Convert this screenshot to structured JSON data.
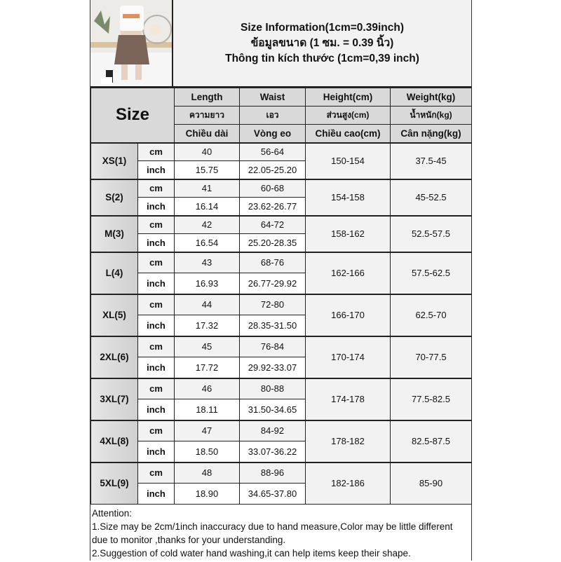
{
  "title": {
    "line1": "Size Information(1cm=0.39inch)",
    "line2": "ข้อมูลขนาด (1 ซม. = 0.39 นิ้ว)",
    "line3": "Thông tin kích thước (1cm=0,39 inch)"
  },
  "header": {
    "size_label": "Size",
    "columns": [
      {
        "en": "Length",
        "th": "ความยาว",
        "vi": "Chiều dài"
      },
      {
        "en": "Waist",
        "th": "เอว",
        "vi": "Vòng eo"
      },
      {
        "en": "Height(cm)",
        "th": "ส่วนสูง(cm)",
        "vi": "Chiều cao(cm)"
      },
      {
        "en": "Weight(kg)",
        "th": "น้ำหนัก(kg)",
        "vi": "Cân nặng(kg)"
      }
    ]
  },
  "units": {
    "cm": "cm",
    "inch": "inch"
  },
  "rows": [
    {
      "size": "XS(1)",
      "length_cm": "40",
      "waist_cm": "56-64",
      "length_in": "15.75",
      "waist_in": "22.05-25.20",
      "height": "150-154",
      "weight": "37.5-45"
    },
    {
      "size": "S(2)",
      "length_cm": "41",
      "waist_cm": "60-68",
      "length_in": "16.14",
      "waist_in": "23.62-26.77",
      "height": "154-158",
      "weight": "45-52.5"
    },
    {
      "size": "M(3)",
      "length_cm": "42",
      "waist_cm": "64-72",
      "length_in": "16.54",
      "waist_in": "25.20-28.35",
      "height": "158-162",
      "weight": "52.5-57.5"
    },
    {
      "size": "L(4)",
      "length_cm": "43",
      "waist_cm": "68-76",
      "length_in": "16.93",
      "waist_in": "26.77-29.92",
      "height": "162-166",
      "weight": "57.5-62.5"
    },
    {
      "size": "XL(5)",
      "length_cm": "44",
      "waist_cm": "72-80",
      "length_in": "17.32",
      "waist_in": "28.35-31.50",
      "height": "166-170",
      "weight": "62.5-70"
    },
    {
      "size": "2XL(6)",
      "length_cm": "45",
      "waist_cm": "76-84",
      "length_in": "17.72",
      "waist_in": "29.92-33.07",
      "height": "170-174",
      "weight": "70-77.5"
    },
    {
      "size": "3XL(7)",
      "length_cm": "46",
      "waist_cm": "80-88",
      "length_in": "18.11",
      "waist_in": "31.50-34.65",
      "height": "174-178",
      "weight": "77.5-82.5"
    },
    {
      "size": "4XL(8)",
      "length_cm": "47",
      "waist_cm": "84-92",
      "length_in": "18.50",
      "waist_in": "33.07-36.22",
      "height": "178-182",
      "weight": "82.5-87.5"
    },
    {
      "size": "5XL(9)",
      "length_cm": "48",
      "waist_cm": "88-96",
      "length_in": "18.90",
      "waist_in": "34.65-37.80",
      "height": "182-186",
      "weight": "85-90"
    }
  ],
  "notes": {
    "heading": "Attention:",
    "line1": "1.Size may be 2cm/1inch inaccuracy due to hand measure,Color may be little different",
    "line2": "due to monitor ,thanks for your understanding.",
    "line3": "2.Suggestion of cold water hand washing,it can help items keep their shape."
  }
}
